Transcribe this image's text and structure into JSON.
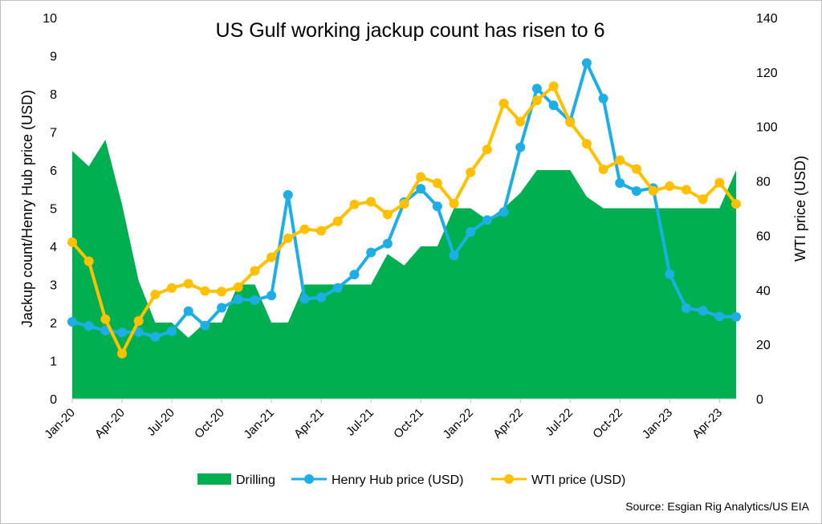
{
  "source": "Source: Esgian Rig Analytics/US EIA",
  "chart_data": {
    "type": "area+line",
    "title": "US Gulf working jackup count has risen to 6",
    "ylabel": "Jackup count/Henry Hub price (USD)",
    "y2label": "WTI price (USD)",
    "ylim": [
      0,
      10
    ],
    "y2lim": [
      0,
      140
    ],
    "yticks": [
      "0",
      "1",
      "2",
      "3",
      "4",
      "5",
      "6",
      "7",
      "8",
      "9",
      "10"
    ],
    "y2ticks": [
      "0",
      "20",
      "40",
      "60",
      "80",
      "100",
      "120",
      "140"
    ],
    "x_ticks": [
      "Jan-20",
      "Apr-20",
      "Jul-20",
      "Oct-20",
      "Jan-21",
      "Apr-21",
      "Jul-21",
      "Oct-21",
      "Jan-22",
      "Apr-22",
      "Jul-22",
      "Oct-22",
      "Jan-23",
      "Apr-23"
    ],
    "x": [
      "Jan-20",
      "Feb-20",
      "Mar-20",
      "Apr-20",
      "May-20",
      "Jun-20",
      "Jul-20",
      "Aug-20",
      "Sep-20",
      "Oct-20",
      "Nov-20",
      "Dec-20",
      "Jan-21",
      "Feb-21",
      "Mar-21",
      "Apr-21",
      "May-21",
      "Jun-21",
      "Jul-21",
      "Aug-21",
      "Sep-21",
      "Oct-21",
      "Nov-21",
      "Dec-21",
      "Jan-22",
      "Feb-22",
      "Mar-22",
      "Apr-22",
      "May-22",
      "Jun-22",
      "Jul-22",
      "Aug-22",
      "Sep-22",
      "Oct-22",
      "Nov-22",
      "Dec-22",
      "Jan-23",
      "Feb-23",
      "Mar-23",
      "Apr-23",
      "May-23"
    ],
    "legend_position": "bottom",
    "series": [
      {
        "name": "Drilling",
        "kind": "area",
        "axis": "left",
        "color": "#00b050",
        "values": [
          6.5,
          6.1,
          6.8,
          5.1,
          3.1,
          2.0,
          2.0,
          1.6,
          2.0,
          2.0,
          3.0,
          3.0,
          2.0,
          2.0,
          3.0,
          3.0,
          3.0,
          3.0,
          3.0,
          3.8,
          3.5,
          4.0,
          4.0,
          5.0,
          5.0,
          4.7,
          5.0,
          5.4,
          6.0,
          6.0,
          6.0,
          5.3,
          5.0,
          5.0,
          5.0,
          5.0,
          5.0,
          5.0,
          5.0,
          5.0,
          6.0
        ]
      },
      {
        "name": "Henry Hub price (USD)",
        "kind": "line",
        "axis": "left",
        "color": "#1eaee6",
        "values": [
          2.02,
          1.91,
          1.79,
          1.74,
          1.75,
          1.63,
          1.77,
          2.3,
          1.92,
          2.39,
          2.61,
          2.59,
          2.71,
          5.35,
          2.62,
          2.66,
          2.91,
          3.26,
          3.84,
          4.07,
          5.16,
          5.51,
          5.05,
          3.76,
          4.38,
          4.69,
          4.9,
          6.6,
          8.14,
          7.7,
          7.28,
          8.81,
          7.88,
          5.66,
          5.45,
          5.53,
          3.27,
          2.38,
          2.31,
          2.16,
          2.15
        ]
      },
      {
        "name": "WTI price (USD)",
        "kind": "line",
        "axis": "right",
        "color": "#ffc000",
        "values": [
          57.5,
          50.5,
          29.2,
          16.6,
          28.6,
          38.3,
          40.7,
          42.3,
          39.6,
          39.4,
          41.0,
          47.0,
          52.0,
          59.0,
          62.3,
          61.7,
          65.2,
          71.4,
          72.4,
          67.7,
          71.6,
          81.5,
          79.2,
          71.7,
          83.2,
          91.6,
          108.5,
          101.8,
          109.6,
          114.8,
          101.6,
          93.7,
          84.3,
          87.6,
          84.4,
          76.4,
          78.1,
          76.8,
          73.3,
          79.4,
          71.6
        ]
      }
    ]
  }
}
